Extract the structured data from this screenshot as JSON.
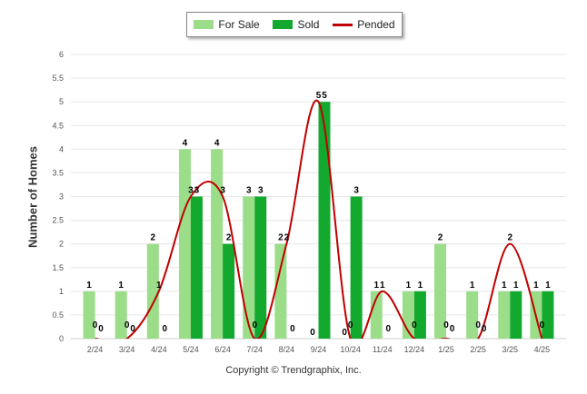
{
  "chart_data": {
    "type": "bar",
    "categories": [
      "2/24",
      "3/24",
      "4/24",
      "5/24",
      "6/24",
      "7/24",
      "8/24",
      "9/24",
      "10/24",
      "11/24",
      "12/24",
      "1/25",
      "2/25",
      "3/25",
      "4/25"
    ],
    "series": [
      {
        "name": "For Sale",
        "kind": "bar",
        "color": "#9bdd89",
        "values": [
          1,
          1,
          2,
          4,
          4,
          3,
          2,
          0,
          0,
          1,
          1,
          2,
          1,
          1,
          1
        ]
      },
      {
        "name": "Sold",
        "kind": "bar",
        "color": "#13a82e",
        "values": [
          0,
          0,
          0,
          3,
          2,
          3,
          0,
          5,
          3,
          0,
          1,
          0,
          0,
          1,
          1
        ]
      },
      {
        "name": "Pended",
        "kind": "line",
        "color": "#c00000",
        "values": [
          0,
          0,
          1,
          3,
          3,
          0,
          2,
          5,
          0,
          1,
          0,
          0,
          0,
          2,
          0
        ]
      }
    ],
    "ylabel": "Number of Homes",
    "ylim": [
      0,
      6
    ],
    "yticks": [
      "0",
      "0.5",
      "1",
      "1.5",
      "2",
      "2.5",
      "3",
      "3.5",
      "4",
      "4.5",
      "5",
      "5.5",
      "6"
    ],
    "grid": true,
    "legend_position": "top-center"
  },
  "footer": {
    "copyright": "Copyright © Trendgraphix, Inc."
  }
}
